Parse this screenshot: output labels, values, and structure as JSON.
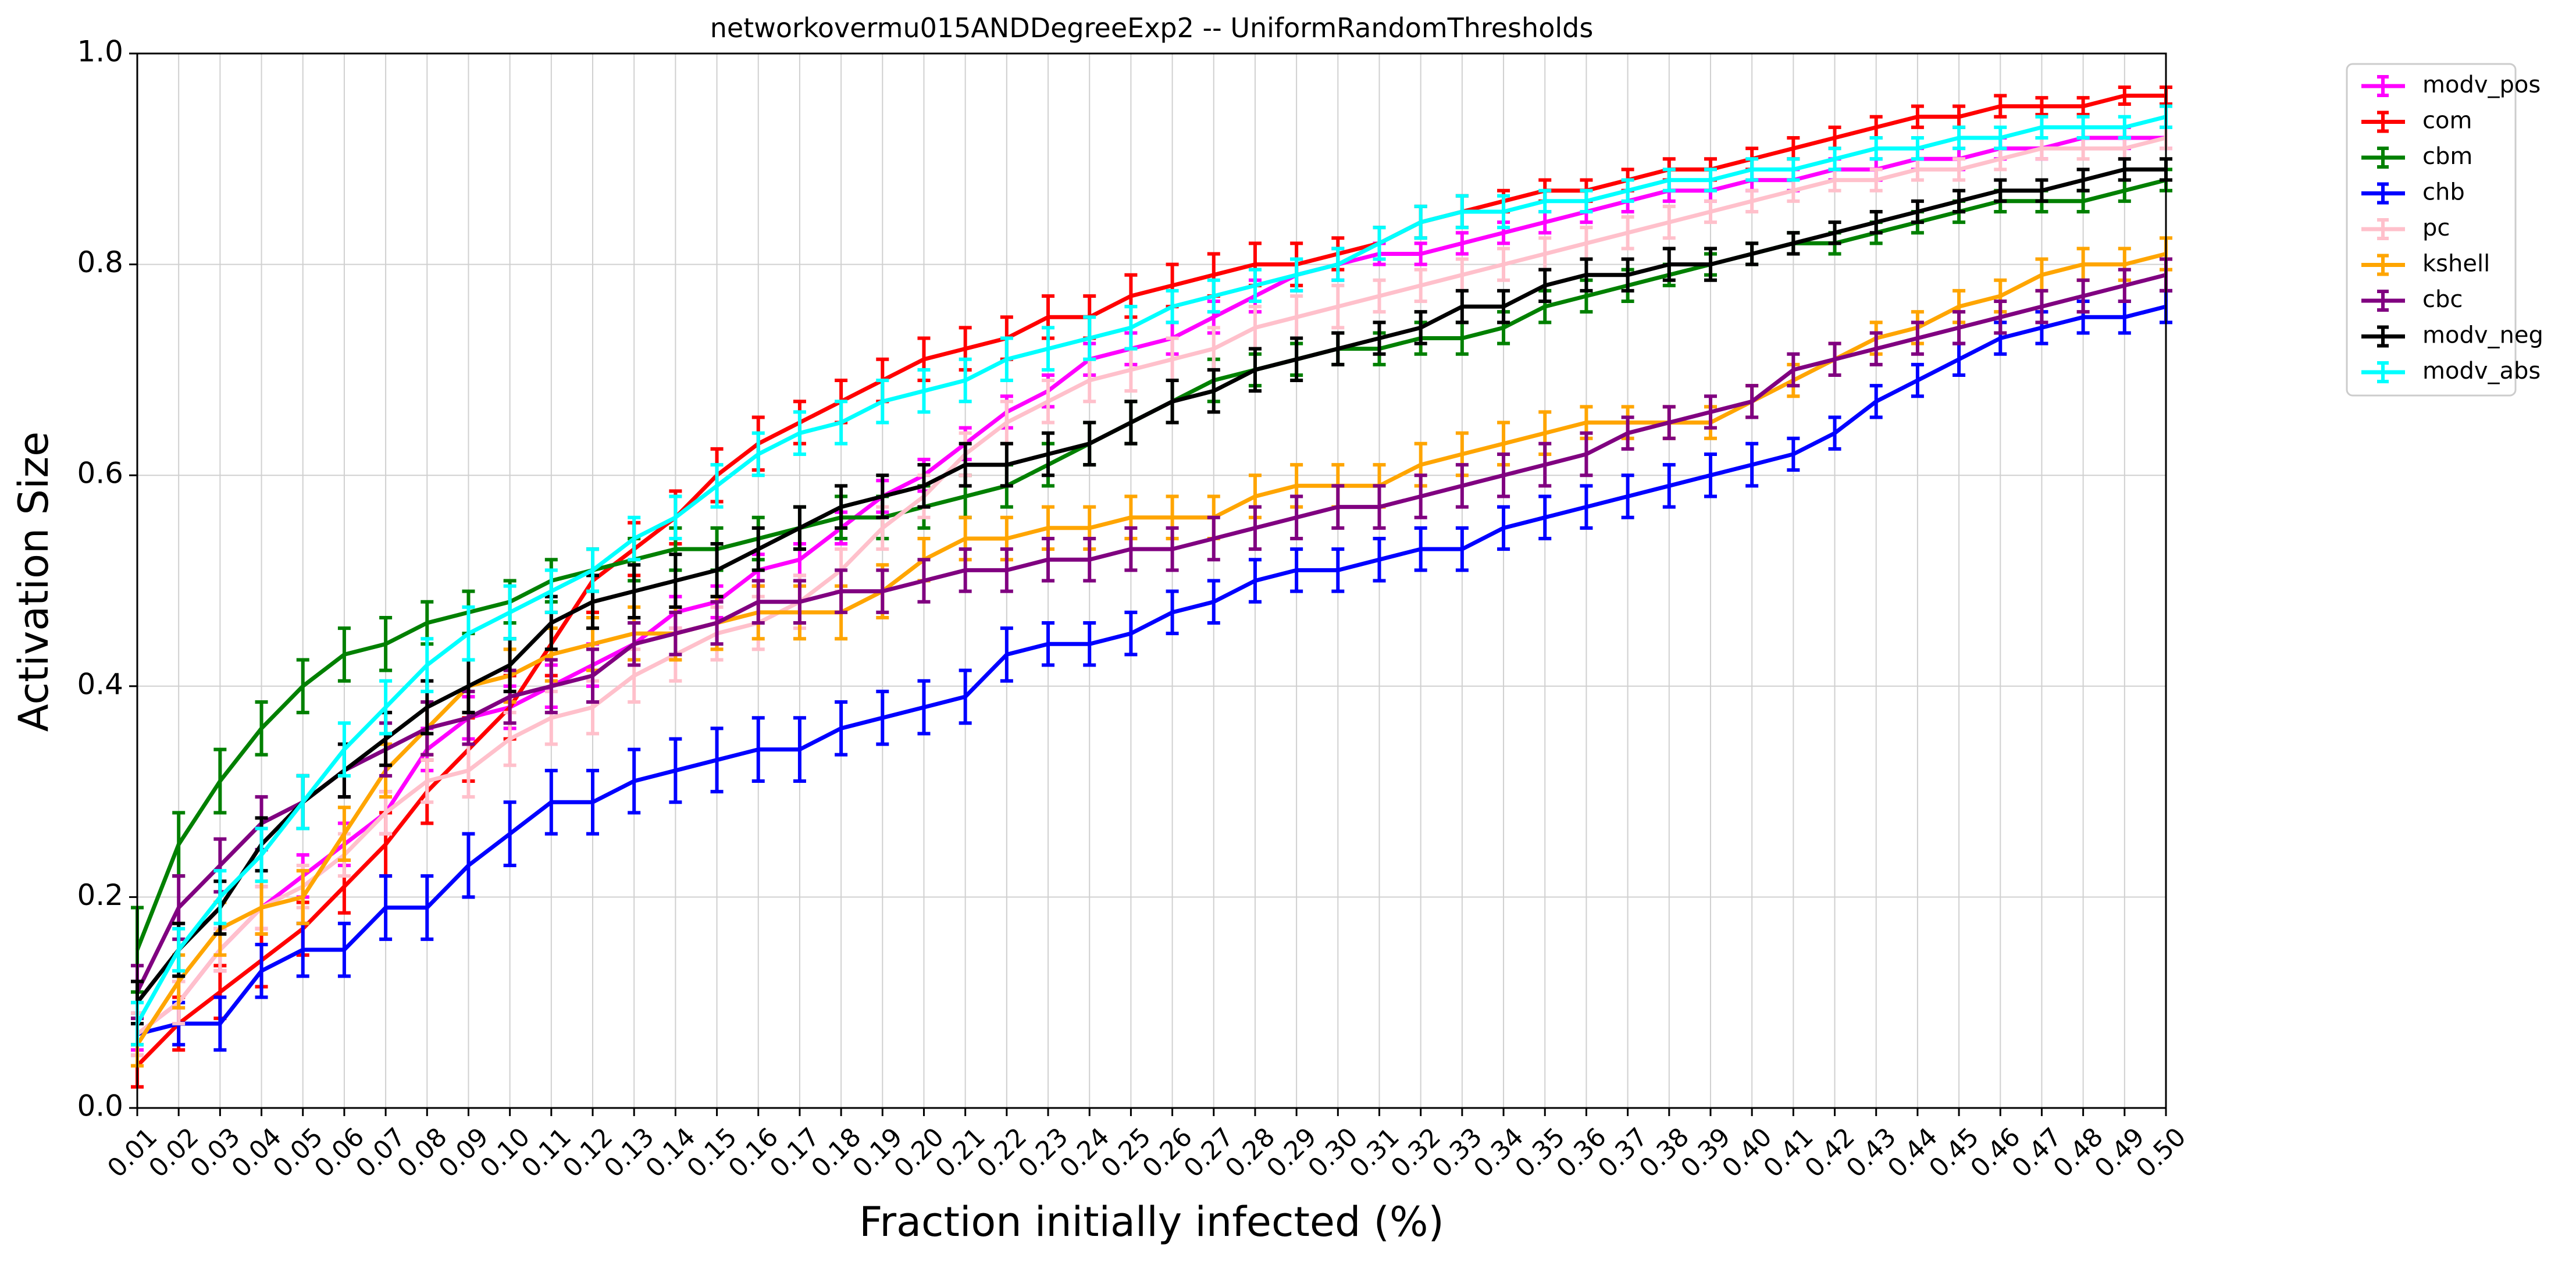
{
  "chart_data": {
    "type": "line",
    "title": "networkovermu015ANDDegreeExp2 -- UniformRandomThresholds",
    "xlabel": "Fraction initially infected (%)",
    "ylabel": "Activation Size",
    "ylim": [
      0.0,
      1.0
    ],
    "grid": true,
    "legend_position": "outside-top-right",
    "x": [
      "0.01",
      "0.02",
      "0.03",
      "0.04",
      "0.05",
      "0.06",
      "0.07",
      "0.08",
      "0.09",
      "0.10",
      "0.11",
      "0.12",
      "0.13",
      "0.14",
      "0.15",
      "0.16",
      "0.17",
      "0.18",
      "0.19",
      "0.20",
      "0.21",
      "0.22",
      "0.23",
      "0.24",
      "0.25",
      "0.26",
      "0.27",
      "0.28",
      "0.29",
      "0.30",
      "0.31",
      "0.32",
      "0.33",
      "0.34",
      "0.35",
      "0.36",
      "0.37",
      "0.38",
      "0.39",
      "0.40",
      "0.41",
      "0.42",
      "0.43",
      "0.44",
      "0.45",
      "0.46",
      "0.47",
      "0.48",
      "0.49",
      "0.50"
    ],
    "yticks": [
      "0.0",
      "0.2",
      "0.4",
      "0.6",
      "0.8",
      "1.0"
    ],
    "series": [
      {
        "name": "modv_pos",
        "color": "#ff00ff",
        "values": [
          0.07,
          0.1,
          0.15,
          0.19,
          0.22,
          0.25,
          0.28,
          0.34,
          0.37,
          0.38,
          0.4,
          0.42,
          0.44,
          0.47,
          0.48,
          0.51,
          0.52,
          0.55,
          0.58,
          0.6,
          0.63,
          0.66,
          0.68,
          0.71,
          0.72,
          0.73,
          0.75,
          0.77,
          0.79,
          0.8,
          0.81,
          0.81,
          0.82,
          0.83,
          0.84,
          0.85,
          0.86,
          0.87,
          0.87,
          0.88,
          0.88,
          0.89,
          0.89,
          0.9,
          0.9,
          0.91,
          0.91,
          0.92,
          0.92,
          0.92
        ],
        "errors": [
          0.015,
          0.02,
          0.02,
          0.02,
          0.02,
          0.02,
          0.02,
          0.02,
          0.02,
          0.02,
          0.02,
          0.02,
          0.02,
          0.015,
          0.015,
          0.015,
          0.015,
          0.015,
          0.015,
          0.015,
          0.015,
          0.015,
          0.015,
          0.015,
          0.015,
          0.015,
          0.015,
          0.015,
          0.015,
          0.015,
          0.01,
          0.01,
          0.01,
          0.01,
          0.01,
          0.01,
          0.01,
          0.01,
          0.01,
          0.01,
          0.01,
          0.01,
          0.01,
          0.01,
          0.01,
          0.01,
          0.01,
          0.01,
          0.01,
          0.01
        ]
      },
      {
        "name": "com",
        "color": "#ff0000",
        "values": [
          0.04,
          0.08,
          0.11,
          0.14,
          0.17,
          0.21,
          0.25,
          0.3,
          0.34,
          0.38,
          0.44,
          0.5,
          0.53,
          0.56,
          0.6,
          0.63,
          0.65,
          0.67,
          0.69,
          0.71,
          0.72,
          0.73,
          0.75,
          0.75,
          0.77,
          0.78,
          0.79,
          0.8,
          0.8,
          0.81,
          0.82,
          0.84,
          0.85,
          0.86,
          0.87,
          0.87,
          0.88,
          0.89,
          0.89,
          0.9,
          0.91,
          0.92,
          0.93,
          0.94,
          0.94,
          0.95,
          0.95,
          0.95,
          0.96,
          0.96
        ],
        "errors": [
          0.02,
          0.025,
          0.025,
          0.025,
          0.025,
          0.025,
          0.03,
          0.03,
          0.03,
          0.03,
          0.03,
          0.03,
          0.025,
          0.025,
          0.025,
          0.025,
          0.02,
          0.02,
          0.02,
          0.02,
          0.02,
          0.02,
          0.02,
          0.02,
          0.02,
          0.02,
          0.02,
          0.02,
          0.02,
          0.015,
          0.015,
          0.015,
          0.015,
          0.01,
          0.01,
          0.01,
          0.01,
          0.01,
          0.01,
          0.01,
          0.01,
          0.01,
          0.01,
          0.01,
          0.01,
          0.01,
          0.008,
          0.008,
          0.008,
          0.008
        ]
      },
      {
        "name": "cbm",
        "color": "#008000",
        "values": [
          0.15,
          0.25,
          0.31,
          0.36,
          0.4,
          0.43,
          0.44,
          0.46,
          0.47,
          0.48,
          0.5,
          0.51,
          0.52,
          0.53,
          0.53,
          0.54,
          0.55,
          0.56,
          0.56,
          0.57,
          0.58,
          0.59,
          0.61,
          0.63,
          0.65,
          0.67,
          0.69,
          0.7,
          0.71,
          0.72,
          0.72,
          0.73,
          0.73,
          0.74,
          0.76,
          0.77,
          0.78,
          0.79,
          0.8,
          0.81,
          0.82,
          0.82,
          0.83,
          0.84,
          0.85,
          0.86,
          0.86,
          0.86,
          0.87,
          0.88
        ],
        "errors": [
          0.04,
          0.03,
          0.03,
          0.025,
          0.025,
          0.025,
          0.025,
          0.02,
          0.02,
          0.02,
          0.02,
          0.02,
          0.02,
          0.02,
          0.02,
          0.02,
          0.02,
          0.02,
          0.02,
          0.02,
          0.02,
          0.02,
          0.02,
          0.02,
          0.02,
          0.02,
          0.02,
          0.015,
          0.015,
          0.015,
          0.015,
          0.015,
          0.015,
          0.015,
          0.015,
          0.015,
          0.015,
          0.01,
          0.01,
          0.01,
          0.01,
          0.01,
          0.01,
          0.01,
          0.01,
          0.01,
          0.01,
          0.01,
          0.01,
          0.01
        ]
      },
      {
        "name": "chb",
        "color": "#0000ff",
        "values": [
          0.07,
          0.08,
          0.08,
          0.13,
          0.15,
          0.15,
          0.19,
          0.19,
          0.23,
          0.26,
          0.29,
          0.29,
          0.31,
          0.32,
          0.33,
          0.34,
          0.34,
          0.36,
          0.37,
          0.38,
          0.39,
          0.43,
          0.44,
          0.44,
          0.45,
          0.47,
          0.48,
          0.5,
          0.51,
          0.51,
          0.52,
          0.53,
          0.53,
          0.55,
          0.56,
          0.57,
          0.58,
          0.59,
          0.6,
          0.61,
          0.62,
          0.64,
          0.67,
          0.69,
          0.71,
          0.73,
          0.74,
          0.75,
          0.75,
          0.76
        ],
        "errors": [
          0.02,
          0.02,
          0.025,
          0.025,
          0.025,
          0.025,
          0.03,
          0.03,
          0.03,
          0.03,
          0.03,
          0.03,
          0.03,
          0.03,
          0.03,
          0.03,
          0.03,
          0.025,
          0.025,
          0.025,
          0.025,
          0.025,
          0.02,
          0.02,
          0.02,
          0.02,
          0.02,
          0.02,
          0.02,
          0.02,
          0.02,
          0.02,
          0.02,
          0.02,
          0.02,
          0.02,
          0.02,
          0.02,
          0.02,
          0.02,
          0.015,
          0.015,
          0.015,
          0.015,
          0.015,
          0.015,
          0.015,
          0.015,
          0.015,
          0.015
        ]
      },
      {
        "name": "pc",
        "color": "#ffc0cb",
        "values": [
          0.07,
          0.1,
          0.15,
          0.19,
          0.21,
          0.24,
          0.28,
          0.31,
          0.32,
          0.35,
          0.37,
          0.38,
          0.41,
          0.43,
          0.45,
          0.46,
          0.48,
          0.51,
          0.55,
          0.58,
          0.62,
          0.65,
          0.67,
          0.69,
          0.7,
          0.71,
          0.72,
          0.74,
          0.75,
          0.76,
          0.77,
          0.78,
          0.79,
          0.8,
          0.81,
          0.82,
          0.83,
          0.84,
          0.85,
          0.86,
          0.87,
          0.88,
          0.88,
          0.89,
          0.89,
          0.9,
          0.91,
          0.91,
          0.91,
          0.92
        ],
        "errors": [
          0.02,
          0.02,
          0.02,
          0.02,
          0.02,
          0.02,
          0.02,
          0.02,
          0.025,
          0.025,
          0.025,
          0.025,
          0.025,
          0.025,
          0.025,
          0.025,
          0.025,
          0.02,
          0.02,
          0.02,
          0.02,
          0.02,
          0.02,
          0.02,
          0.02,
          0.02,
          0.02,
          0.02,
          0.02,
          0.02,
          0.015,
          0.015,
          0.015,
          0.015,
          0.015,
          0.015,
          0.015,
          0.015,
          0.01,
          0.01,
          0.01,
          0.01,
          0.01,
          0.01,
          0.01,
          0.01,
          0.01,
          0.01,
          0.01,
          0.01
        ]
      },
      {
        "name": "kshell",
        "color": "#ffa500",
        "values": [
          0.06,
          0.12,
          0.17,
          0.19,
          0.2,
          0.26,
          0.32,
          0.36,
          0.4,
          0.41,
          0.43,
          0.44,
          0.45,
          0.45,
          0.46,
          0.47,
          0.47,
          0.47,
          0.49,
          0.52,
          0.54,
          0.54,
          0.55,
          0.55,
          0.56,
          0.56,
          0.56,
          0.58,
          0.59,
          0.59,
          0.59,
          0.61,
          0.62,
          0.63,
          0.64,
          0.65,
          0.65,
          0.65,
          0.65,
          0.67,
          0.69,
          0.71,
          0.73,
          0.74,
          0.76,
          0.77,
          0.79,
          0.8,
          0.8,
          0.81
        ],
        "errors": [
          0.02,
          0.025,
          0.025,
          0.025,
          0.025,
          0.025,
          0.025,
          0.025,
          0.025,
          0.025,
          0.025,
          0.025,
          0.025,
          0.025,
          0.025,
          0.025,
          0.025,
          0.025,
          0.025,
          0.02,
          0.02,
          0.02,
          0.02,
          0.02,
          0.02,
          0.02,
          0.02,
          0.02,
          0.02,
          0.02,
          0.02,
          0.02,
          0.02,
          0.02,
          0.02,
          0.015,
          0.015,
          0.015,
          0.015,
          0.015,
          0.015,
          0.015,
          0.015,
          0.015,
          0.015,
          0.015,
          0.015,
          0.015,
          0.015,
          0.015
        ]
      },
      {
        "name": "cbc",
        "color": "#800080",
        "values": [
          0.11,
          0.19,
          0.23,
          0.27,
          0.29,
          0.32,
          0.34,
          0.36,
          0.37,
          0.39,
          0.4,
          0.41,
          0.44,
          0.45,
          0.46,
          0.48,
          0.48,
          0.49,
          0.49,
          0.5,
          0.51,
          0.51,
          0.52,
          0.52,
          0.53,
          0.53,
          0.54,
          0.55,
          0.56,
          0.57,
          0.57,
          0.58,
          0.59,
          0.6,
          0.61,
          0.62,
          0.64,
          0.65,
          0.66,
          0.67,
          0.7,
          0.71,
          0.72,
          0.73,
          0.74,
          0.75,
          0.76,
          0.77,
          0.78,
          0.79
        ],
        "errors": [
          0.025,
          0.03,
          0.025,
          0.025,
          0.025,
          0.025,
          0.025,
          0.025,
          0.025,
          0.025,
          0.025,
          0.025,
          0.02,
          0.02,
          0.02,
          0.02,
          0.02,
          0.02,
          0.02,
          0.02,
          0.02,
          0.02,
          0.02,
          0.02,
          0.02,
          0.02,
          0.02,
          0.02,
          0.02,
          0.02,
          0.02,
          0.02,
          0.02,
          0.02,
          0.02,
          0.02,
          0.015,
          0.015,
          0.015,
          0.015,
          0.015,
          0.015,
          0.015,
          0.015,
          0.015,
          0.015,
          0.015,
          0.015,
          0.015,
          0.015
        ]
      },
      {
        "name": "modv_neg",
        "color": "#000000",
        "values": [
          0.1,
          0.15,
          0.19,
          0.25,
          0.29,
          0.32,
          0.35,
          0.38,
          0.4,
          0.42,
          0.46,
          0.48,
          0.49,
          0.5,
          0.51,
          0.53,
          0.55,
          0.57,
          0.58,
          0.59,
          0.61,
          0.61,
          0.62,
          0.63,
          0.65,
          0.67,
          0.68,
          0.7,
          0.71,
          0.72,
          0.73,
          0.74,
          0.76,
          0.76,
          0.78,
          0.79,
          0.79,
          0.8,
          0.8,
          0.81,
          0.82,
          0.83,
          0.84,
          0.85,
          0.86,
          0.87,
          0.87,
          0.88,
          0.89,
          0.89
        ],
        "errors": [
          0.02,
          0.025,
          0.025,
          0.025,
          0.025,
          0.025,
          0.025,
          0.025,
          0.025,
          0.025,
          0.025,
          0.025,
          0.025,
          0.025,
          0.025,
          0.02,
          0.02,
          0.02,
          0.02,
          0.02,
          0.02,
          0.02,
          0.02,
          0.02,
          0.02,
          0.02,
          0.02,
          0.02,
          0.02,
          0.015,
          0.015,
          0.015,
          0.015,
          0.015,
          0.015,
          0.015,
          0.015,
          0.015,
          0.015,
          0.01,
          0.01,
          0.01,
          0.01,
          0.01,
          0.01,
          0.01,
          0.01,
          0.01,
          0.01,
          0.01
        ]
      },
      {
        "name": "modv_abs",
        "color": "#00ffff",
        "values": [
          0.08,
          0.15,
          0.2,
          0.24,
          0.29,
          0.34,
          0.38,
          0.42,
          0.45,
          0.47,
          0.49,
          0.51,
          0.54,
          0.56,
          0.59,
          0.62,
          0.64,
          0.65,
          0.67,
          0.68,
          0.69,
          0.71,
          0.72,
          0.73,
          0.74,
          0.76,
          0.77,
          0.78,
          0.79,
          0.8,
          0.82,
          0.84,
          0.85,
          0.85,
          0.86,
          0.86,
          0.87,
          0.88,
          0.88,
          0.89,
          0.89,
          0.9,
          0.91,
          0.91,
          0.92,
          0.92,
          0.93,
          0.93,
          0.93,
          0.94
        ],
        "errors": [
          0.02,
          0.02,
          0.025,
          0.025,
          0.025,
          0.025,
          0.025,
          0.025,
          0.025,
          0.025,
          0.02,
          0.02,
          0.02,
          0.02,
          0.02,
          0.02,
          0.02,
          0.02,
          0.02,
          0.02,
          0.02,
          0.02,
          0.02,
          0.02,
          0.02,
          0.015,
          0.015,
          0.015,
          0.015,
          0.015,
          0.015,
          0.015,
          0.015,
          0.015,
          0.01,
          0.01,
          0.01,
          0.01,
          0.01,
          0.01,
          0.01,
          0.01,
          0.01,
          0.01,
          0.01,
          0.01,
          0.01,
          0.01,
          0.01,
          0.01
        ]
      }
    ]
  }
}
